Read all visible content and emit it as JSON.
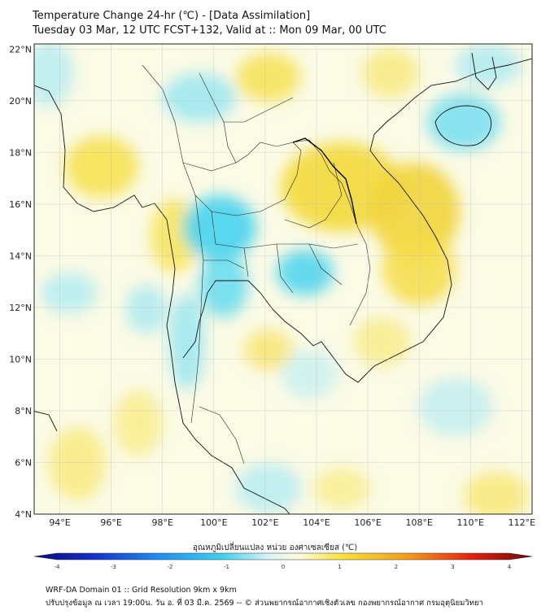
{
  "header": {
    "title_line1": "Temperature Change 24-hr (℃) - [Data Assimilation]",
    "title_line2": "Tuesday 03 Mar, 12 UTC FCST+132, Valid at :: Mon 09 Mar, 00 UTC"
  },
  "map": {
    "lat_labels": [
      "22°N",
      "20°N",
      "18°N",
      "16°N",
      "14°N",
      "12°N",
      "10°N",
      "8°N",
      "6°N",
      "4°N"
    ],
    "lon_labels": [
      "94°E",
      "96°E",
      "98°E",
      "100°E",
      "102°E",
      "104°E",
      "106°E",
      "108°E",
      "110°E",
      "112°E"
    ],
    "extent": {
      "lon_min": 93,
      "lon_max": 112.4,
      "lat_min": 4,
      "lat_max": 22.2
    },
    "colors": {
      "warm": "#f7e23a",
      "cool": "#3fd3ef",
      "neutral": "#fbfbe8"
    }
  },
  "colorbar": {
    "title": "อุณหภูมิเปลี่ยนแปลง หน่วย องศาเซลเซียส (℃)",
    "ticks": [
      "-4",
      "-3",
      "-2",
      "-1",
      "0",
      "1",
      "2",
      "3",
      "4"
    ],
    "min": -4,
    "max": 4
  },
  "footer": {
    "line1": "WRF-DA Domain 01 :: Grid Resolution 9km x 9km",
    "line2": "ปรับปรุงข้อมูล ณ เวลา 19:00น. วัน อ. ที่ 03 มี.ค. 2569 -- © ส่วนพยากรณ์อากาศเชิงตัวเลข กองพยากรณ์อากาศ กรมอุตุนิยมวิทยา"
  }
}
